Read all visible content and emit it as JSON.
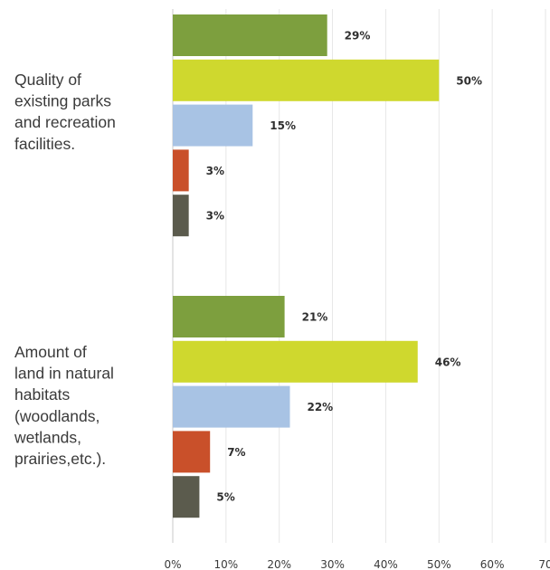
{
  "chart_data": {
    "type": "bar",
    "orientation": "horizontal",
    "categories": [
      {
        "label_lines": [
          "Quality of",
          "existing parks",
          "and recreation",
          "facilities."
        ],
        "values": [
          29,
          50,
          15,
          3,
          3
        ],
        "value_labels": [
          "29%",
          "50%",
          "15%",
          "3%",
          "3%"
        ]
      },
      {
        "label_lines": [
          "Amount of",
          "land in natural",
          "habitats",
          "(woodlands,",
          "wetlands,",
          "prairies,etc.)."
        ],
        "values": [
          21,
          46,
          22,
          7,
          5
        ],
        "value_labels": [
          "21%",
          "46%",
          "22%",
          "7%",
          "5%"
        ]
      }
    ],
    "series_colors": [
      "#7d9f3e",
      "#cfd82e",
      "#a8c3e4",
      "#c9502a",
      "#5b5b4d"
    ],
    "xlim": [
      0,
      70
    ],
    "x_ticks": [
      0,
      10,
      20,
      30,
      40,
      50,
      60,
      70
    ],
    "x_tick_labels": [
      "0%",
      "10%",
      "20%",
      "30%",
      "40%",
      "50%",
      "60%",
      "70"
    ],
    "grid": true,
    "legend": "none"
  }
}
